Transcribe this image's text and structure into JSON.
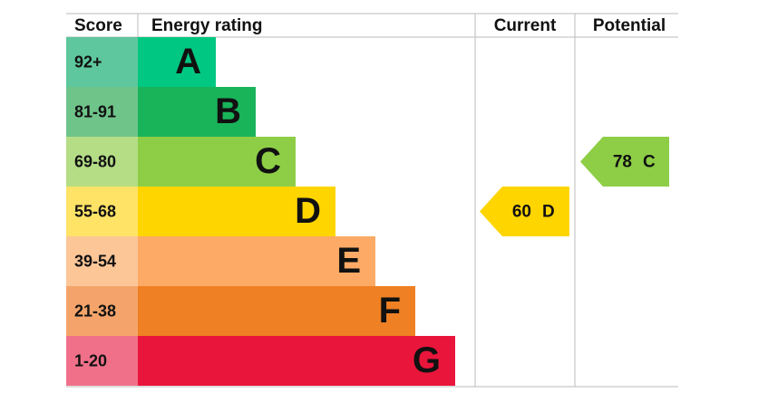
{
  "header": {
    "score": "Score",
    "rating": "Energy rating",
    "current": "Current",
    "potential": "Potential"
  },
  "bands": [
    {
      "score": "92+",
      "letter": "A"
    },
    {
      "score": "81-91",
      "letter": "B"
    },
    {
      "score": "69-80",
      "letter": "C"
    },
    {
      "score": "55-68",
      "letter": "D"
    },
    {
      "score": "39-54",
      "letter": "E"
    },
    {
      "score": "21-38",
      "letter": "F"
    },
    {
      "score": "1-20",
      "letter": "G"
    }
  ],
  "current": {
    "value": 60,
    "letter": "D"
  },
  "potential": {
    "value": 78,
    "letter": "C"
  }
}
